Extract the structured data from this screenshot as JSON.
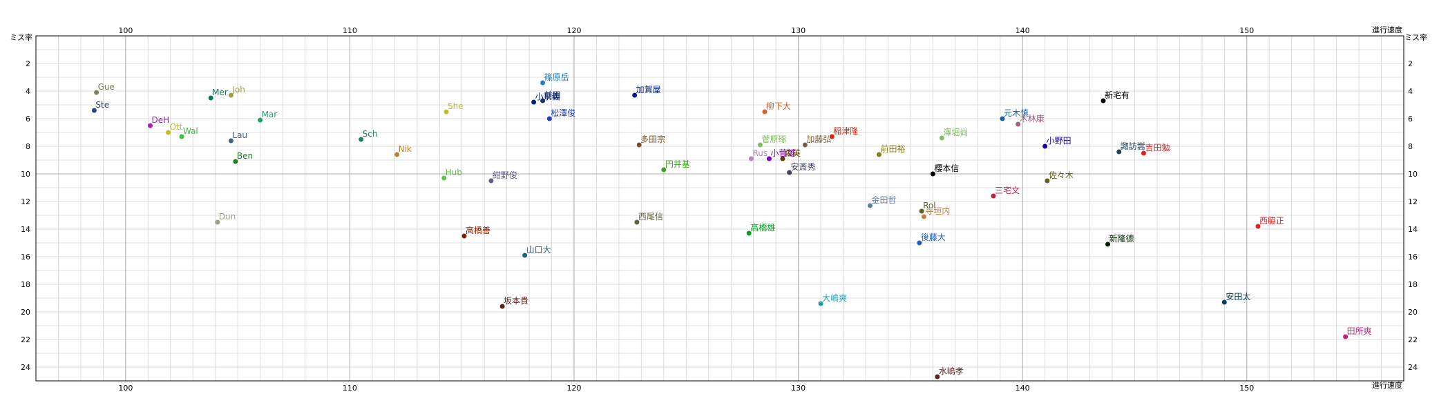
{
  "chart_data": {
    "type": "scatter",
    "x_axis_label": "進行速度",
    "y_axis_label": "ミス率",
    "xlim": [
      96,
      157
    ],
    "ylim": [
      0,
      25
    ],
    "y_reversed": true,
    "x_ticks": [
      100,
      110,
      120,
      130,
      140,
      150
    ],
    "y_ticks": [
      2,
      4,
      6,
      8,
      10,
      12,
      14,
      16,
      18,
      20,
      22,
      24
    ],
    "minor_grid_x": 1,
    "minor_grid_y": 1,
    "grid": true,
    "points": [
      {
        "label": "Gue",
        "x": 98.7,
        "y": 4.1,
        "color": "#808060"
      },
      {
        "label": "Ste",
        "x": 98.6,
        "y": 5.4,
        "color": "#304080"
      },
      {
        "label": "DeH",
        "x": 101.1,
        "y": 6.5,
        "color": "#a020c0"
      },
      {
        "label": "Ott",
        "x": 101.9,
        "y": 7.0,
        "color": "#c0c020"
      },
      {
        "label": "Wal",
        "x": 102.5,
        "y": 7.3,
        "color": "#40c040"
      },
      {
        "label": "Mer",
        "x": 103.8,
        "y": 4.5,
        "color": "#008060"
      },
      {
        "label": "Joh",
        "x": 104.7,
        "y": 4.3,
        "color": "#a0a040"
      },
      {
        "label": "Mar",
        "x": 106.0,
        "y": 6.1,
        "color": "#20a060"
      },
      {
        "label": "Lau",
        "x": 104.7,
        "y": 7.6,
        "color": "#406080"
      },
      {
        "label": "Ben",
        "x": 104.9,
        "y": 9.1,
        "color": "#208020"
      },
      {
        "label": "Dun",
        "x": 104.1,
        "y": 13.5,
        "color": "#a0a080"
      },
      {
        "label": "Sch",
        "x": 110.5,
        "y": 7.5,
        "color": "#208060"
      },
      {
        "label": "Nik",
        "x": 112.1,
        "y": 8.6,
        "color": "#c08020"
      },
      {
        "label": "She",
        "x": 114.3,
        "y": 5.5,
        "color": "#c0c020"
      },
      {
        "label": "Hub",
        "x": 114.2,
        "y": 10.3,
        "color": "#60c040"
      },
      {
        "label": "紺野俊",
        "x": 116.3,
        "y": 10.5,
        "color": "#606080"
      },
      {
        "label": "篠原岳",
        "x": 118.6,
        "y": 3.4,
        "color": "#2080c0"
      },
      {
        "label": "小泉義",
        "x": 118.2,
        "y": 4.8,
        "color": "#002080"
      },
      {
        "label": "前田",
        "x": 118.6,
        "y": 4.7,
        "color": "#203060"
      },
      {
        "label": "松澤俊",
        "x": 118.9,
        "y": 6.0,
        "color": "#2040c0"
      },
      {
        "label": "山口大",
        "x": 117.8,
        "y": 15.9,
        "color": "#206080"
      },
      {
        "label": "坂本貴",
        "x": 116.8,
        "y": 19.6,
        "color": "#602020"
      },
      {
        "label": "高橋善",
        "x": 115.1,
        "y": 14.5,
        "color": "#802000"
      },
      {
        "label": "加賀屋",
        "x": 122.7,
        "y": 4.3,
        "color": "#002080"
      },
      {
        "label": "多田宗",
        "x": 122.9,
        "y": 7.9,
        "color": "#805020"
      },
      {
        "label": "円井基",
        "x": 124.0,
        "y": 9.7,
        "color": "#40a020"
      },
      {
        "label": "西尾信",
        "x": 122.8,
        "y": 13.5,
        "color": "#606040"
      },
      {
        "label": "柳下大",
        "x": 128.5,
        "y": 5.5,
        "color": "#e06020"
      },
      {
        "label": "菅原琢",
        "x": 128.3,
        "y": 7.9,
        "color": "#80c060"
      },
      {
        "label": "Rus",
        "x": 127.9,
        "y": 8.9,
        "color": "#c080c0"
      },
      {
        "label": "小菅雄",
        "x": 128.7,
        "y": 8.9,
        "color": "#8000c0"
      },
      {
        "label": "森英",
        "x": 129.3,
        "y": 8.9,
        "color": "#604000"
      },
      {
        "label": "加藤弘",
        "x": 130.3,
        "y": 7.9,
        "color": "#806040"
      },
      {
        "label": "稲津隆",
        "x": 131.5,
        "y": 7.3,
        "color": "#e02000"
      },
      {
        "label": "安斎秀",
        "x": 129.6,
        "y": 9.9,
        "color": "#404060"
      },
      {
        "label": "高橋雄",
        "x": 127.8,
        "y": 14.3,
        "color": "#00a020"
      },
      {
        "label": "大嶋爽",
        "x": 131.0,
        "y": 19.4,
        "color": "#20a0a0"
      },
      {
        "label": "前田裕",
        "x": 133.6,
        "y": 8.6,
        "color": "#808020"
      },
      {
        "label": "金田哲",
        "x": 133.2,
        "y": 12.3,
        "color": "#6080a0"
      },
      {
        "label": "Rol",
        "x": 135.5,
        "y": 12.7,
        "color": "#606020"
      },
      {
        "label": "寺垣内",
        "x": 135.6,
        "y": 13.1,
        "color": "#c08040"
      },
      {
        "label": "後藤大",
        "x": 135.4,
        "y": 15.0,
        "color": "#2060c0"
      },
      {
        "label": "櫻本信",
        "x": 136.0,
        "y": 10.0,
        "color": "#000000"
      },
      {
        "label": "澤堀尚",
        "x": 136.4,
        "y": 7.4,
        "color": "#80c060"
      },
      {
        "label": "水嶋孝",
        "x": 136.2,
        "y": 24.7,
        "color": "#602020"
      },
      {
        "label": "元木慎",
        "x": 139.1,
        "y": 6.0,
        "color": "#2060a0"
      },
      {
        "label": "木林康",
        "x": 139.8,
        "y": 6.4,
        "color": "#a06080"
      },
      {
        "label": "三宅文",
        "x": 138.7,
        "y": 11.6,
        "color": "#c02040"
      },
      {
        "label": "小野田",
        "x": 141.0,
        "y": 8.0,
        "color": "#2000a0"
      },
      {
        "label": "佐々木",
        "x": 141.1,
        "y": 10.5,
        "color": "#606020"
      },
      {
        "label": "新宅有",
        "x": 143.6,
        "y": 4.7,
        "color": "#000000"
      },
      {
        "label": "諏訪嵩",
        "x": 144.3,
        "y": 8.4,
        "color": "#204060"
      },
      {
        "label": "吉田勉",
        "x": 145.4,
        "y": 8.5,
        "color": "#e02020"
      },
      {
        "label": "新隆德",
        "x": 143.8,
        "y": 15.1,
        "color": "#002000"
      },
      {
        "label": "安田太",
        "x": 149.0,
        "y": 19.3,
        "color": "#004060"
      },
      {
        "label": "西脇正",
        "x": 150.5,
        "y": 13.8,
        "color": "#e02020"
      },
      {
        "label": "田所爽",
        "x": 154.4,
        "y": 21.8,
        "color": "#c02080"
      }
    ]
  }
}
